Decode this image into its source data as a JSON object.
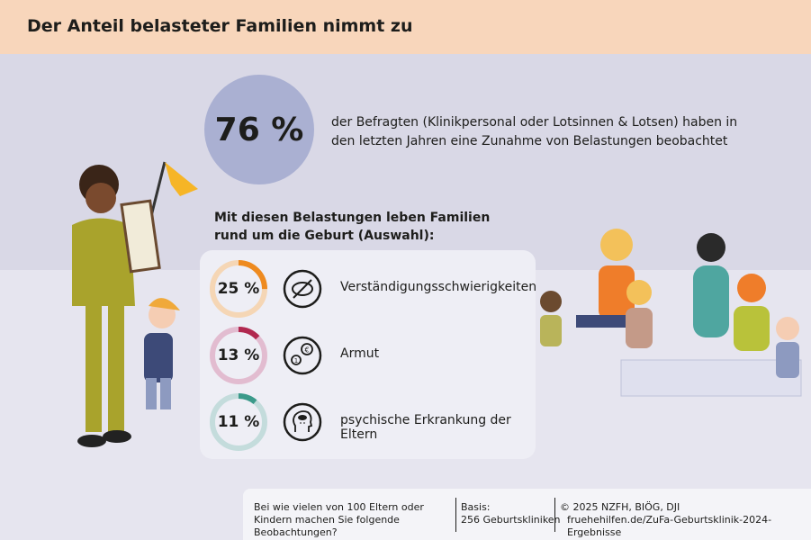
{
  "header": {
    "title": "Der Anteil belasteter Familien nimmt zu"
  },
  "highlight": {
    "value": "76 %",
    "text": "der Befragten (Klinikpersonal oder Lotsinnen & Lotsen) haben in den letzten Jahren eine Zunahme von Belastungen beobachtet"
  },
  "subheading": "Mit diesen Belastungen leben Familien rund um die Geburt (Auswahl):",
  "items": [
    {
      "value": "25 %",
      "percent": 25,
      "label": "Verständigungsschwierigkeiten",
      "icon": "speech-crossed-icon",
      "color": "#ee8a1f",
      "track": "#f5d6b5"
    },
    {
      "value": "13 %",
      "percent": 13,
      "label": "Armut",
      "icon": "coins-icon",
      "color": "#b1284f",
      "track": "#e2bcd0"
    },
    {
      "value": "11 %",
      "percent": 11,
      "label": "psychische Erkrankung der Eltern",
      "icon": "head-rain-cloud-icon",
      "color": "#3b9a8a",
      "track": "#c4dcdc"
    }
  ],
  "footer": {
    "question": "Bei wie vielen von 100 Eltern oder Kindern machen Sie folgende Beobachtungen?",
    "basis_label": "Basis:",
    "basis_value": "256 Geburtskliniken",
    "copyright": "© 2025 NZFH, BIÖG, DJI",
    "source": "fruehehilfen.de/ZuFa-Geburtsklinik-2024-Ergebnisse"
  }
}
